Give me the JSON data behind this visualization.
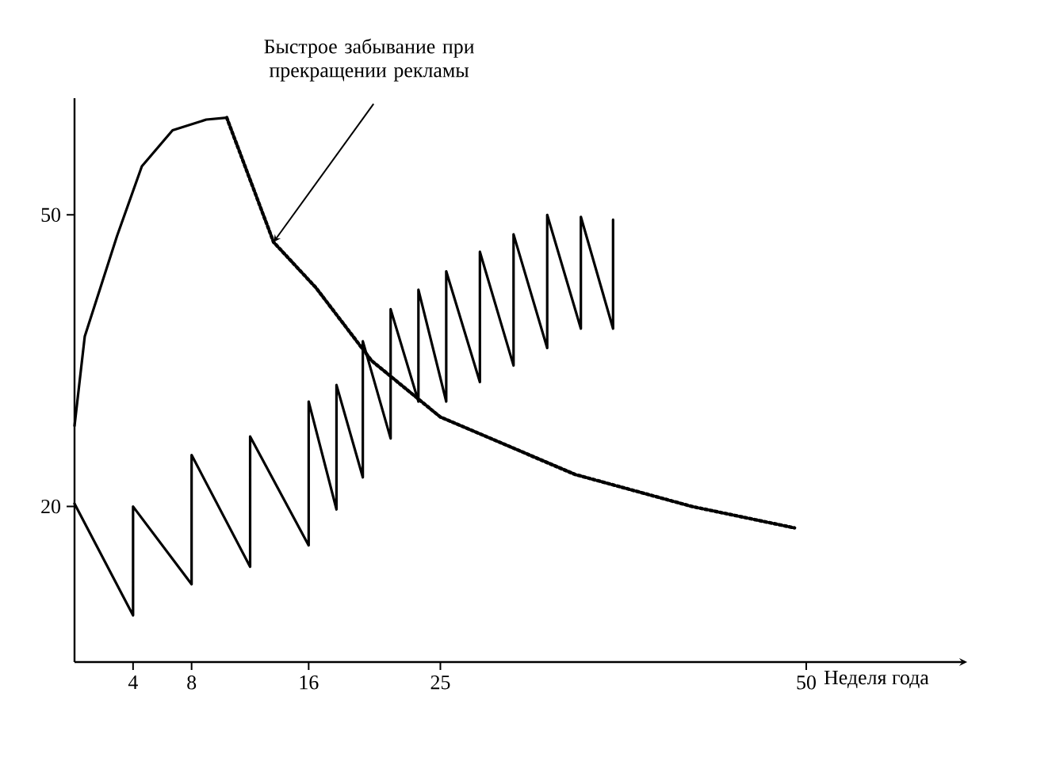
{
  "chart_data": {
    "type": "line",
    "xlabel": "Неделя года",
    "annotations": [
      {
        "text": "Быстрое забывание при прекращении рекламы",
        "x": 13.6,
        "y": 47.2
      }
    ],
    "xlim": [
      0,
      61
    ],
    "ylim": [
      4,
      62
    ],
    "xticks": [
      4,
      8,
      16,
      25,
      50
    ],
    "yticks": [
      20,
      50
    ],
    "marker": "none",
    "series": [
      {
        "color": "#000000",
        "line_style": "solid",
        "x": [
          0,
          4,
          4,
          8,
          8,
          12,
          12,
          16,
          16,
          17.9,
          17.9,
          19.7,
          19.7,
          21.6,
          21.6,
          23.5,
          23.5,
          25.4,
          25.4,
          27.7,
          27.7,
          30,
          30,
          32.3,
          32.3,
          34.6,
          34.6,
          36.8,
          36.8
        ],
        "values": [
          20.3,
          8.8,
          20,
          12,
          25.3,
          13.8,
          27.2,
          16,
          30.8,
          19.7,
          32.5,
          23,
          37,
          27,
          40.3,
          30.8,
          42.3,
          30.8,
          44.2,
          32.8,
          46.2,
          34.5,
          48,
          36.3,
          50,
          38.3,
          49.8,
          38.3,
          49.5
        ]
      },
      {
        "color": "#000000",
        "line_style": "solid",
        "x": [
          0,
          0.7,
          2.9,
          4.6,
          6.7,
          9,
          10.4
        ],
        "values": [
          28.3,
          37.5,
          47.8,
          55,
          58.7,
          59.8,
          60
        ]
      },
      {
        "color": "#000000",
        "line_style": "dotted",
        "x": [
          10.4,
          13.6,
          16.5,
          20.3,
          25,
          34.2,
          42.2,
          49.2
        ],
        "values": [
          60,
          47.2,
          42.5,
          35,
          29.2,
          23.3,
          20,
          17.8
        ]
      }
    ]
  }
}
